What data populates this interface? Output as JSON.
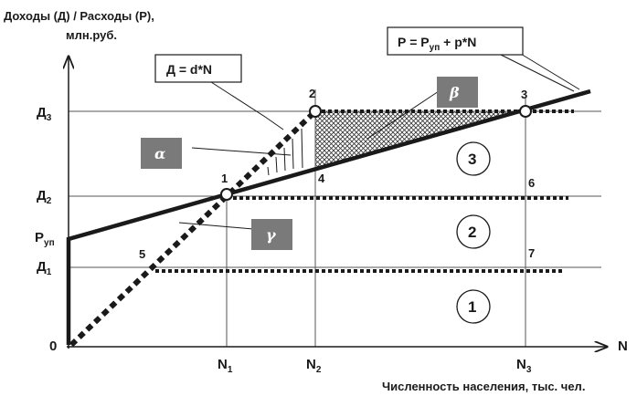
{
  "titles": {
    "y_axis_line1": "Доходы (Д) / Расходы (Р),",
    "y_axis_line2": "млн.руб.",
    "x_axis_symbol": "N",
    "x_axis_caption": "Численность населения, тыс. чел."
  },
  "y_ticks": {
    "d3": {
      "main": "Д",
      "sub": "3"
    },
    "d2": {
      "main": "Д",
      "sub": "2"
    },
    "pup": {
      "main": "Р",
      "sub": "уп"
    },
    "d1": {
      "main": "Д",
      "sub": "1"
    },
    "origin": "0"
  },
  "x_ticks": {
    "n1": {
      "main": "N",
      "sub": "1"
    },
    "n2": {
      "main": "N",
      "sub": "2"
    },
    "n3": {
      "main": "N",
      "sub": "3"
    }
  },
  "formulas": {
    "expense": {
      "a": "Р = Р",
      "sub": "уп",
      "b": " + р*N"
    },
    "income": "Д = d*N"
  },
  "points": [
    "1",
    "2",
    "3",
    "4",
    "5",
    "6",
    "7"
  ],
  "zones": [
    "1",
    "2",
    "3"
  ],
  "greek": {
    "alpha": "α",
    "beta": "β",
    "gamma": "γ"
  },
  "colors": {
    "line": "#1a1a1a",
    "greek_box": "#7a7a7a",
    "grid": "#555555"
  }
}
